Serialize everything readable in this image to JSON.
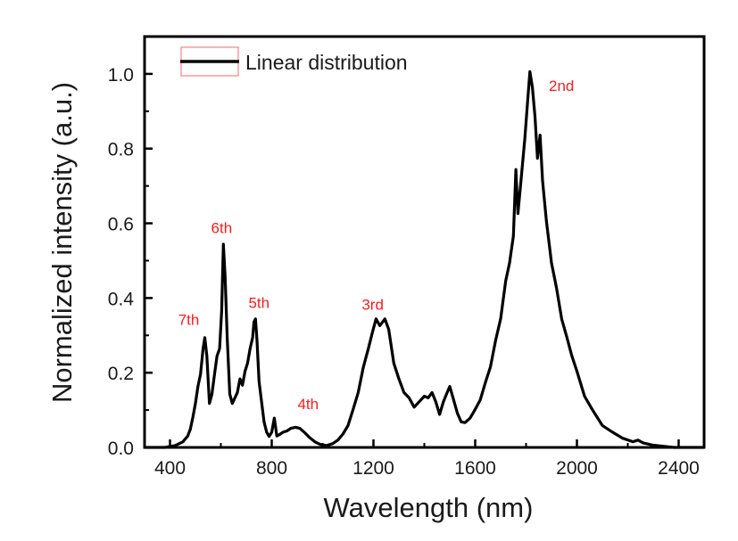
{
  "chart_data": {
    "type": "line",
    "title": "",
    "xlabel": "Wavelength (nm)",
    "ylabel": "Normalized intensity (a.u.)",
    "xlim": [
      300,
      2500
    ],
    "ylim": [
      0,
      1.1
    ],
    "grid": false,
    "x_ticks": [
      400,
      800,
      1200,
      1600,
      2000,
      2400
    ],
    "x_tick_labels": [
      "400",
      "800",
      "1200",
      "1600",
      "2000",
      "2400"
    ],
    "x_minor_ticks": [
      600,
      1000,
      1400,
      1800,
      2200
    ],
    "y_ticks": [
      0.0,
      0.2,
      0.4,
      0.6,
      0.8,
      1.0
    ],
    "y_tick_labels": [
      "0.0",
      "0.2",
      "0.4",
      "0.6",
      "0.8",
      "1.0"
    ],
    "y_minor_ticks": [
      0.1,
      0.3,
      0.5,
      0.7,
      0.9
    ],
    "legend": {
      "position": "top-left",
      "entries": [
        {
          "label": "Linear distribution",
          "color": "#000000"
        }
      ]
    },
    "series": [
      {
        "name": "Linear distribution",
        "color": "#000000",
        "x": [
          300,
          380,
          420,
          450,
          470,
          480,
          490,
          500,
          510,
          520,
          530,
          537,
          545,
          555,
          565,
          575,
          585,
          595,
          603,
          610,
          617,
          625,
          635,
          645,
          655,
          665,
          675,
          685,
          695,
          705,
          715,
          725,
          730,
          736,
          742,
          750,
          760,
          770,
          780,
          790,
          800,
          810,
          820,
          830,
          845,
          860,
          875,
          894,
          910,
          930,
          950,
          970,
          990,
          1016,
          1040,
          1060,
          1080,
          1100,
          1120,
          1140,
          1160,
          1180,
          1195,
          1210,
          1225,
          1245,
          1260,
          1280,
          1300,
          1320,
          1340,
          1360,
          1380,
          1400,
          1415,
          1430,
          1445,
          1460,
          1475,
          1490,
          1500,
          1515,
          1530,
          1545,
          1560,
          1580,
          1600,
          1620,
          1640,
          1660,
          1680,
          1700,
          1720,
          1735,
          1750,
          1760,
          1768,
          1780,
          1795,
          1808,
          1815,
          1825,
          1835,
          1845,
          1855,
          1865,
          1880,
          1900,
          1920,
          1940,
          1960,
          1980,
          2000,
          2030,
          2060,
          2100,
          2140,
          2180,
          2220,
          2240,
          2260,
          2300,
          2340,
          2380,
          2420,
          2460,
          2500
        ],
        "y": [
          0.0,
          0.0,
          0.005,
          0.015,
          0.03,
          0.05,
          0.08,
          0.12,
          0.16,
          0.2,
          0.26,
          0.3,
          0.24,
          0.12,
          0.14,
          0.2,
          0.24,
          0.27,
          0.36,
          0.55,
          0.45,
          0.3,
          0.14,
          0.12,
          0.13,
          0.15,
          0.18,
          0.17,
          0.2,
          0.23,
          0.26,
          0.3,
          0.33,
          0.35,
          0.28,
          0.18,
          0.12,
          0.07,
          0.04,
          0.03,
          0.04,
          0.08,
          0.03,
          0.035,
          0.04,
          0.045,
          0.05,
          0.055,
          0.05,
          0.04,
          0.025,
          0.015,
          0.008,
          0.005,
          0.01,
          0.02,
          0.035,
          0.06,
          0.1,
          0.15,
          0.21,
          0.27,
          0.3,
          0.35,
          0.32,
          0.35,
          0.31,
          0.23,
          0.18,
          0.15,
          0.13,
          0.11,
          0.12,
          0.14,
          0.13,
          0.15,
          0.12,
          0.09,
          0.12,
          0.15,
          0.16,
          0.13,
          0.09,
          0.07,
          0.065,
          0.08,
          0.1,
          0.13,
          0.17,
          0.22,
          0.28,
          0.35,
          0.44,
          0.5,
          0.56,
          0.75,
          0.62,
          0.72,
          0.82,
          0.95,
          1.0,
          0.97,
          0.88,
          0.78,
          0.83,
          0.72,
          0.6,
          0.5,
          0.42,
          0.35,
          0.29,
          0.25,
          0.2,
          0.14,
          0.1,
          0.06,
          0.04,
          0.025,
          0.015,
          0.02,
          0.012,
          0.006,
          0.003,
          0.0,
          0.0,
          0.0,
          0.0
        ]
      }
    ],
    "annotations": [
      {
        "text": "7th",
        "x": 537,
        "y": 0.3,
        "color": "#ff1a1a"
      },
      {
        "text": "6th",
        "x": 610,
        "y": 0.55,
        "color": "#ff1a1a"
      },
      {
        "text": "5th",
        "x": 736,
        "y": 0.35,
        "color": "#ff1a1a"
      },
      {
        "text": "4th",
        "x": 894,
        "y": 0.055,
        "color": "#ff1a1a"
      },
      {
        "text": "3rd",
        "x": 1225,
        "y": 0.35,
        "color": "#ff1a1a"
      },
      {
        "text": "2nd",
        "x": 1855,
        "y": 0.83,
        "color": "#ff1a1a"
      }
    ]
  }
}
